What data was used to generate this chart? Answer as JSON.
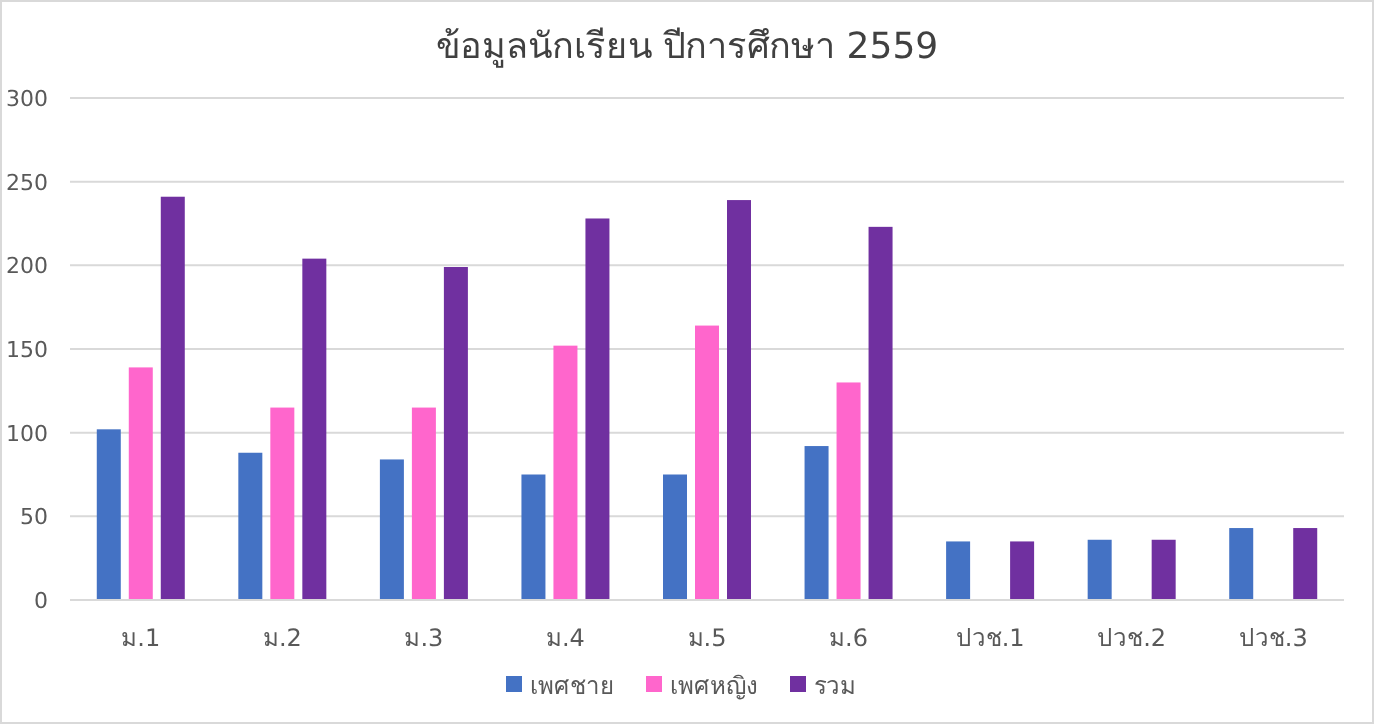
{
  "chart_data": {
    "type": "bar",
    "title": "ข้อมูลนักเรียน ปีการศึกษา 2559",
    "categories": [
      "ม.1",
      "ม.2",
      "ม.3",
      "ม.4",
      "ม.5",
      "ม.6",
      "ปวช.1",
      "ปวช.2",
      "ปวช.3"
    ],
    "series": [
      {
        "name": "เพศชาย",
        "color": "#4472c4",
        "values": [
          102,
          88,
          84,
          75,
          75,
          92,
          35,
          36,
          43
        ]
      },
      {
        "name": "เพศหญิง",
        "color": "#ff66cc",
        "values": [
          139,
          115,
          115,
          152,
          164,
          130,
          null,
          null,
          null
        ]
      },
      {
        "name": "รวม",
        "color": "#7030a0",
        "values": [
          241,
          204,
          199,
          228,
          239,
          223,
          35,
          36,
          43
        ]
      }
    ],
    "ylim": [
      0,
      300
    ],
    "yticks": [
      0,
      50,
      100,
      150,
      200,
      250,
      300
    ],
    "grid": "y",
    "legend": "bottom"
  }
}
